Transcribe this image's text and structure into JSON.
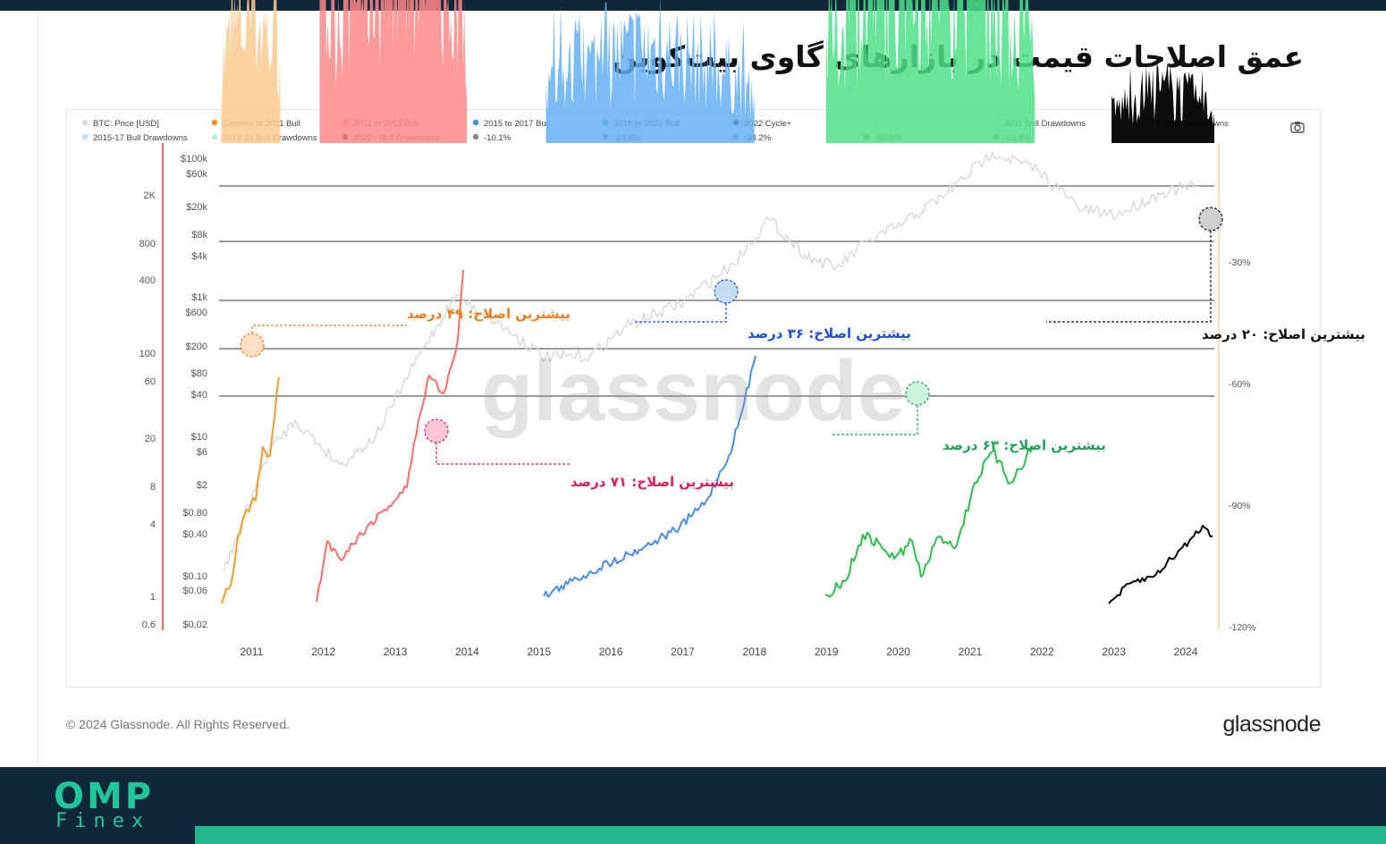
{
  "page_title": "عمق اصلاحات قیمت در بازارهای گاوی بیت‌کوین",
  "copyright": "© 2024 Glassnode. All Rights Reserved.",
  "brand": "glassnode",
  "watermark": "glassnode",
  "logo": {
    "main": "OMP",
    "sub": "Finex"
  },
  "colors": {
    "orange": "#f29a2e",
    "red": "#ff6b6b",
    "blue": "#4a8de8",
    "green": "#2ebd4e",
    "black": "#000000",
    "gray_price": "#d8d8d8",
    "orange_fill": "#fdc98f",
    "red_fill": "#ff8888",
    "blue_fill": "#65b0f5",
    "green_fill": "#4ee08a",
    "black_fill": "#000000",
    "callout_orange": "#f07c1e",
    "callout_red": "#e01f5a",
    "callout_blue": "#1f4fd1",
    "callout_green": "#1fa35a",
    "callout_black": "#111111",
    "topbar": "#10273a",
    "footer": "#10273a",
    "footer_accent": "#22b68c",
    "logo": "#20c79a"
  },
  "chart_data": {
    "type": "line",
    "legend": [
      {
        "label": "BTC: Price [USD]",
        "color": "#dcdcdc"
      },
      {
        "label": "Genesis to 2011 Bull",
        "color": "#f7931a"
      },
      {
        "label": "2011 to 2013 Bull",
        "color": "#ff6b6b"
      },
      {
        "label": "2015 to 2017 Bull",
        "color": "#4a8de8"
      },
      {
        "label": "2018 to 2021 Bull",
        "color": "#2ebd4e"
      },
      {
        "label": "2022 Cycle+",
        "color": "#000000"
      },
      {
        "label": "-",
        "color": null
      },
      {
        "label": "2011 Bull Drawdowns",
        "color": "#fde0bd"
      },
      {
        "label": "2011-13 Bull Drawdowns",
        "color": "#ffc9cf"
      },
      {
        "label": "2015-17 Bull Drawdowns",
        "color": "#bcdcf7"
      },
      {
        "label": "2018-21 Bull Drawdowns",
        "color": "#bff0d3"
      },
      {
        "label": "2022+ Bull Drawdowns",
        "color": "#000000"
      },
      {
        "label": "-10.1%",
        "color": "#888888"
      },
      {
        "label": "-23.6%",
        "color": "#888888"
      },
      {
        "label": "-38.2%",
        "color": "#888888"
      },
      {
        "label": "-50.0%",
        "color": "#888888"
      },
      {
        "label": "-61.8%",
        "color": "#888888"
      },
      {
        "label": "-",
        "color": null
      }
    ],
    "x_ticks": [
      "2011",
      "2012",
      "2013",
      "2014",
      "2015",
      "2016",
      "2017",
      "2018",
      "2019",
      "2020",
      "2021",
      "2022",
      "2023",
      "2024"
    ],
    "y_left_outer_ticks": [
      "2K",
      "800",
      "400",
      "100",
      "60",
      "20",
      "8",
      "4",
      "1",
      "0.6"
    ],
    "y_left_price_ticks": [
      "$100k",
      "$60k",
      "$20k",
      "$8k",
      "$4k",
      "$1k",
      "$600",
      "$200",
      "$80",
      "$40",
      "$10",
      "$6",
      "$2",
      "$0.80",
      "$0.40",
      "$0.10",
      "$0.06",
      "$0.02"
    ],
    "y_right_ticks": [
      "-30%",
      "-60%",
      "-90%",
      "-120%"
    ],
    "drawdown_levels": [
      -10.1,
      -23.6,
      -38.2,
      -50.0,
      -61.8
    ],
    "series": [
      {
        "name": "Genesis to 2011 Bull",
        "x_range": [
          2010.55,
          2011.35
        ]
      },
      {
        "name": "2011 to 2013 Bull",
        "x_range": [
          2011.9,
          2013.95
        ]
      },
      {
        "name": "2015 to 2017 Bull",
        "x_range": [
          2015.0,
          2018.0
        ]
      },
      {
        "name": "2018 to 2021 Bull",
        "x_range": [
          2018.95,
          2021.85
        ]
      },
      {
        "name": "2022 Cycle+",
        "x_range": [
          2022.9,
          2024.35
        ]
      }
    ],
    "max_drawdowns": [
      {
        "series": "Genesis to 2011 Bull",
        "value": -49
      },
      {
        "series": "2011 to 2013 Bull",
        "value": -71
      },
      {
        "series": "2015 to 2017 Bull",
        "value": -36
      },
      {
        "series": "2018 to 2021 Bull",
        "value": -63
      },
      {
        "series": "2022 Cycle+",
        "value": -20
      }
    ],
    "annotations": [
      {
        "text": "بیشترین اصلاح: ۴۹ درصد",
        "color": "#f07c1e"
      },
      {
        "text": "بیشترین اصلاح: ۷۱ درصد",
        "color": "#e01f5a"
      },
      {
        "text": "بیشترین اصلاح: ۳۶ درصد",
        "color": "#1f4fd1"
      },
      {
        "text": "بیشترین اصلاح: ۶۳ درصد",
        "color": "#1fa35a"
      },
      {
        "text": "بیشترین اصلاح: ۲۰ درصد",
        "color": "#111111"
      }
    ]
  }
}
